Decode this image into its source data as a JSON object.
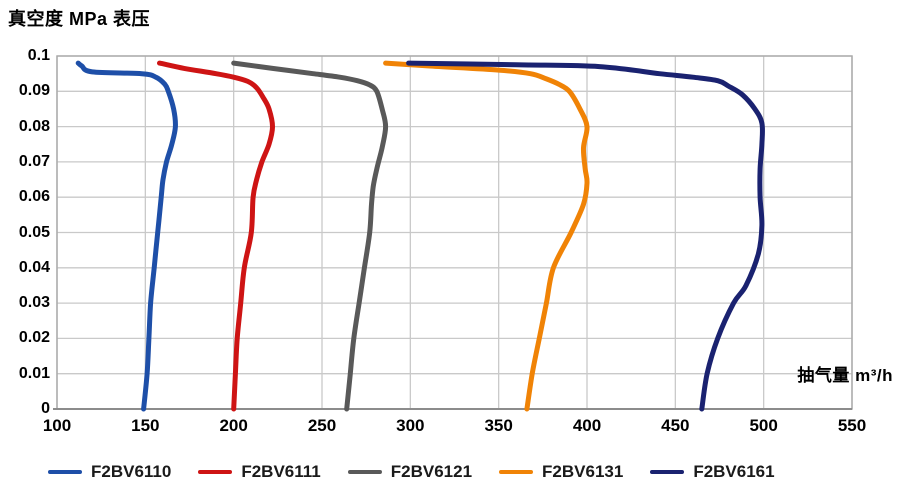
{
  "title": "真空度 MPa 表压",
  "x_axis_unit": "抽气量 m³/h",
  "colors": {
    "grid": "#c9c9c9",
    "plot_border": "#ababab",
    "axis_line": "#8c8c8c",
    "text": "#000000"
  },
  "chart_data": {
    "type": "line",
    "title": "真空度 MPa 表压",
    "xlabel": "抽气量 m³/h",
    "ylabel": "真空度 MPa 表压",
    "xlim": [
      100,
      550
    ],
    "ylim": [
      0,
      0.1
    ],
    "x_ticks": [
      "100",
      "150",
      "200",
      "250",
      "300",
      "350",
      "400",
      "450",
      "500",
      "550"
    ],
    "y_ticks": [
      "0.1",
      "0.09",
      "0.08",
      "0.07",
      "0.06",
      "0.05",
      "0.04",
      "0.03",
      "0.02",
      "0.01",
      "0"
    ],
    "grid": true,
    "legend_position": "bottom",
    "series": [
      {
        "name": "F2BV6110",
        "color": "#1e4fa8",
        "points": [
          [
            112,
            0.098
          ],
          [
            114,
            0.0972
          ],
          [
            120,
            0.0955
          ],
          [
            148,
            0.095
          ],
          [
            156,
            0.094
          ],
          [
            161,
            0.092
          ],
          [
            163,
            0.09
          ],
          [
            166,
            0.085
          ],
          [
            167,
            0.08
          ],
          [
            165,
            0.075
          ],
          [
            162,
            0.07
          ],
          [
            160,
            0.065
          ],
          [
            159,
            0.06
          ],
          [
            157,
            0.05
          ],
          [
            155,
            0.04
          ],
          [
            153,
            0.03
          ],
          [
            152,
            0.02
          ],
          [
            151,
            0.01
          ],
          [
            149,
            0
          ]
        ]
      },
      {
        "name": "F2BV6111",
        "color": "#ce1414",
        "points": [
          [
            158,
            0.098
          ],
          [
            172,
            0.0965
          ],
          [
            190,
            0.095
          ],
          [
            200,
            0.094
          ],
          [
            208,
            0.0928
          ],
          [
            213,
            0.091
          ],
          [
            217,
            0.088
          ],
          [
            220,
            0.085
          ],
          [
            222,
            0.08
          ],
          [
            220,
            0.075
          ],
          [
            216,
            0.07
          ],
          [
            213,
            0.065
          ],
          [
            211,
            0.06
          ],
          [
            210,
            0.05
          ],
          [
            206,
            0.04
          ],
          [
            204,
            0.03
          ],
          [
            202,
            0.02
          ],
          [
            201,
            0.01
          ],
          [
            200,
            0
          ]
        ]
      },
      {
        "name": "F2BV6121",
        "color": "#595959",
        "points": [
          [
            200,
            0.098
          ],
          [
            222,
            0.0965
          ],
          [
            245,
            0.095
          ],
          [
            260,
            0.094
          ],
          [
            270,
            0.093
          ],
          [
            277,
            0.0918
          ],
          [
            281,
            0.09
          ],
          [
            284,
            0.085
          ],
          [
            286,
            0.08
          ],
          [
            284,
            0.074
          ],
          [
            281,
            0.068
          ],
          [
            279,
            0.063
          ],
          [
            278,
            0.058
          ],
          [
            277,
            0.05
          ],
          [
            274,
            0.04
          ],
          [
            271,
            0.03
          ],
          [
            268,
            0.02
          ],
          [
            266,
            0.01
          ],
          [
            264,
            0
          ]
        ]
      },
      {
        "name": "F2BV6131",
        "color": "#f08306",
        "points": [
          [
            286,
            0.098
          ],
          [
            310,
            0.0972
          ],
          [
            350,
            0.096
          ],
          [
            368,
            0.095
          ],
          [
            377,
            0.0935
          ],
          [
            384,
            0.092
          ],
          [
            390,
            0.09
          ],
          [
            396,
            0.085
          ],
          [
            400,
            0.08
          ],
          [
            398,
            0.074
          ],
          [
            399,
            0.068
          ],
          [
            400,
            0.064
          ],
          [
            398,
            0.058
          ],
          [
            391,
            0.05
          ],
          [
            381,
            0.04
          ],
          [
            377,
            0.03
          ],
          [
            373,
            0.02
          ],
          [
            369,
            0.01
          ],
          [
            366,
            0
          ]
        ]
      },
      {
        "name": "F2BV6161",
        "color": "#1a2270",
        "points": [
          [
            299,
            0.098
          ],
          [
            360,
            0.0975
          ],
          [
            407,
            0.097
          ],
          [
            441,
            0.095
          ],
          [
            460,
            0.094
          ],
          [
            474,
            0.093
          ],
          [
            480,
            0.0915
          ],
          [
            488,
            0.089
          ],
          [
            495,
            0.085
          ],
          [
            499,
            0.081
          ],
          [
            499,
            0.075
          ],
          [
            498,
            0.068
          ],
          [
            498,
            0.06
          ],
          [
            499,
            0.052
          ],
          [
            497,
            0.044
          ],
          [
            490,
            0.035
          ],
          [
            483,
            0.03
          ],
          [
            474,
            0.02
          ],
          [
            468,
            0.01
          ],
          [
            465,
            0
          ]
        ]
      }
    ]
  }
}
